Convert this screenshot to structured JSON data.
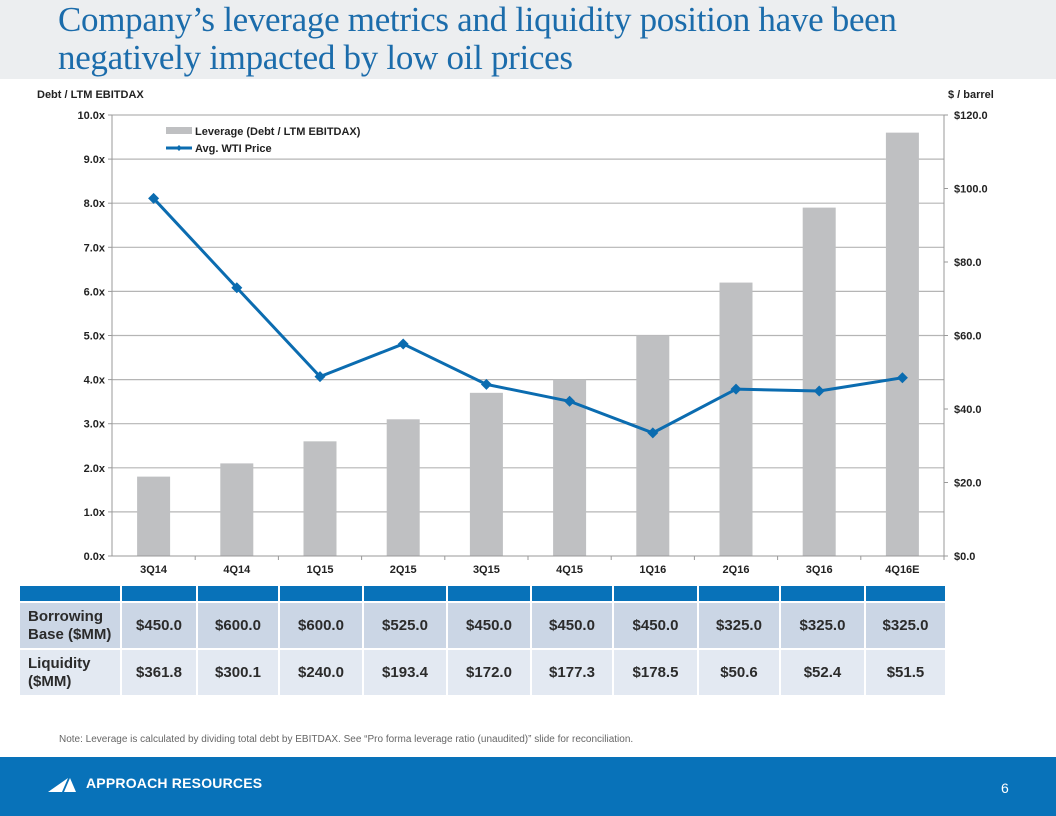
{
  "slide": {
    "title": "Company’s leverage metrics and liquidity position have been negatively impacted by low oil prices",
    "note": "Note: Leverage is calculated by dividing total debt by EBITDAX.  See “Pro forma leverage ratio (unaudited)” slide for reconciliation.",
    "footer": {
      "brand": "APPROACH RESOURCES",
      "logo_icon": "approach-logo-icon",
      "page_number": "6"
    },
    "colors": {
      "brand_blue": "#0872b9",
      "title_blue": "#1b6cab",
      "bar_gray": "#bfc0c2",
      "line_blue": "#0b6cb0"
    }
  },
  "chart_data": {
    "type": "bar+line",
    "categories": [
      "3Q14",
      "4Q14",
      "1Q15",
      "2Q15",
      "3Q15",
      "4Q15",
      "1Q16",
      "2Q16",
      "3Q16",
      "4Q16E"
    ],
    "series": [
      {
        "name": "Leverage (Debt / LTM EBITDAX)",
        "type": "bar",
        "axis": "left",
        "values": [
          1.8,
          2.1,
          2.6,
          3.1,
          3.7,
          4.0,
          5.0,
          6.2,
          7.9,
          9.6
        ]
      },
      {
        "name": "Avg. WTI Price",
        "type": "line",
        "axis": "right",
        "marker": "diamond",
        "values": [
          97.3,
          73.0,
          48.8,
          57.7,
          46.7,
          42.1,
          33.5,
          45.4,
          44.9,
          48.5
        ]
      }
    ],
    "ylabel_left": "Debt / LTM EBITDAX",
    "ylabel_right": "$ / barrel",
    "ylim_left": [
      0,
      10
    ],
    "ylim_right": [
      0,
      120
    ],
    "yticks_left": [
      "0.0x",
      "1.0x",
      "2.0x",
      "3.0x",
      "4.0x",
      "5.0x",
      "6.0x",
      "7.0x",
      "8.0x",
      "9.0x",
      "10.0x"
    ],
    "yticks_right": [
      "$0.0",
      "$20.0",
      "$40.0",
      "$60.0",
      "$80.0",
      "$100.0",
      "$120.0"
    ],
    "grid": true,
    "legend": "top-left"
  },
  "table": {
    "rows": [
      {
        "label": "Borrowing Base ($MM)",
        "values": [
          "$450.0",
          "$600.0",
          "$600.0",
          "$525.0",
          "$450.0",
          "$450.0",
          "$450.0",
          "$325.0",
          "$325.0",
          "$325.0"
        ]
      },
      {
        "label": "Liquidity ($MM)",
        "values": [
          "$361.8",
          "$300.1",
          "$240.0",
          "$193.4",
          "$172.0",
          "$177.3",
          "$178.5",
          "$50.6",
          "$52.4",
          "$51.5"
        ]
      }
    ]
  }
}
